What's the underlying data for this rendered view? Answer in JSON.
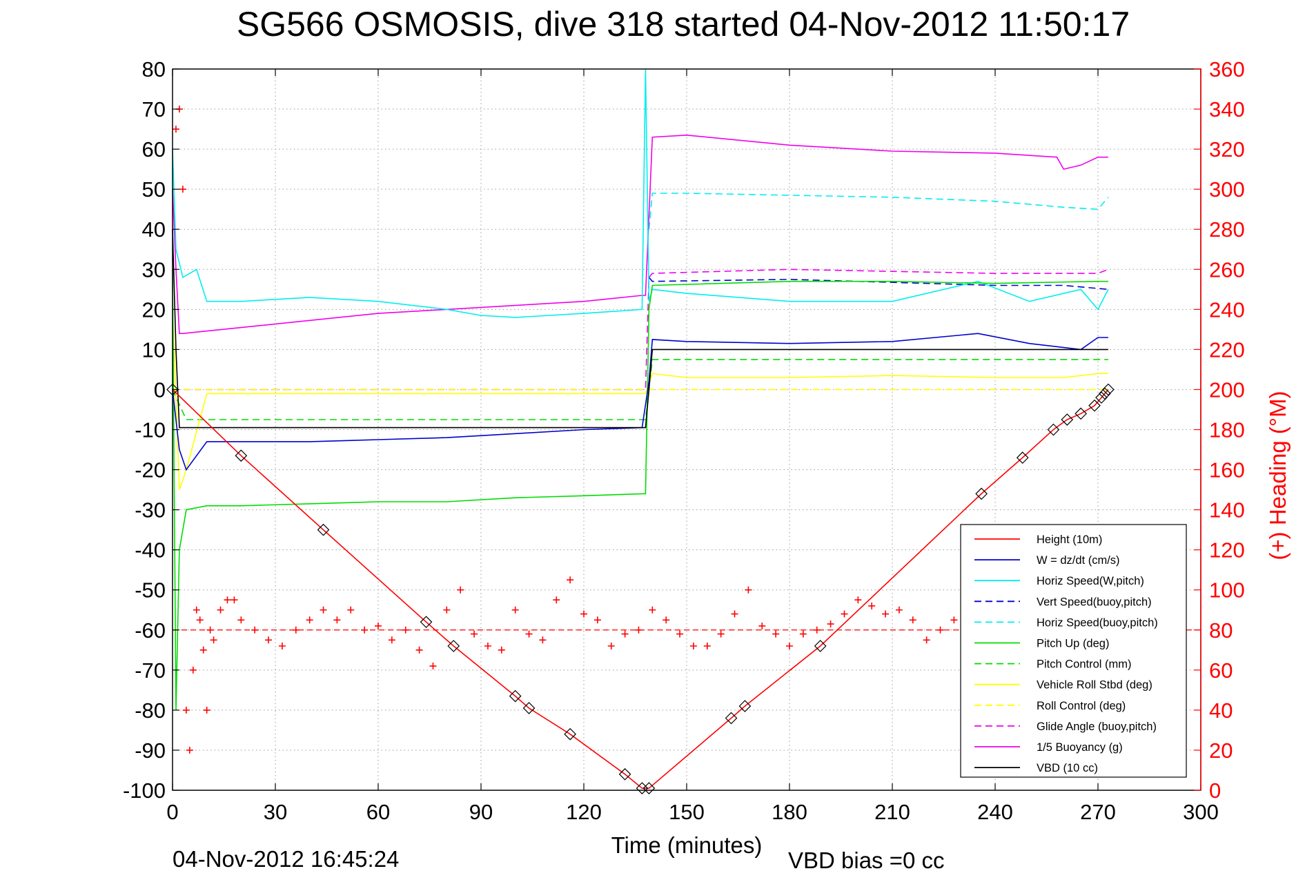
{
  "chart_data": {
    "type": "line",
    "title": "SG566 OSMOSIS, dive 318 started 04-Nov-2012 11:50:17",
    "xlabel": "Time (minutes)",
    "ylabel": "",
    "y2label": "(+) Heading (°M)",
    "footer_left": "04-Nov-2012 16:45:24",
    "footer_right": "VBD bias =0 cc",
    "xlim": [
      0,
      300
    ],
    "ylim": [
      -100,
      80
    ],
    "y2lim": [
      0,
      360
    ],
    "xticks": [
      0,
      30,
      60,
      90,
      120,
      150,
      180,
      210,
      240,
      270,
      300
    ],
    "yticks": [
      -100,
      -90,
      -80,
      -70,
      -60,
      -50,
      -40,
      -30,
      -20,
      -10,
      0,
      10,
      20,
      30,
      40,
      50,
      60,
      70,
      80
    ],
    "y2ticks": [
      0,
      20,
      40,
      60,
      80,
      100,
      120,
      140,
      160,
      180,
      200,
      220,
      240,
      260,
      280,
      300,
      320,
      340,
      360
    ],
    "grid": true,
    "legend_position": "bottom-right",
    "colors": {
      "red": "#ff0000",
      "blue": "#0000cc",
      "cyan": "#00eeee",
      "green": "#00dd00",
      "yellow": "#ffff00",
      "magenta": "#ee00ee",
      "black": "#000000"
    },
    "series": [
      {
        "name": "Height (10m)",
        "color": "#ff0000",
        "style": "solid",
        "axis": "left",
        "x": [
          0,
          20,
          44,
          74,
          82,
          100,
          104,
          116,
          132,
          137,
          139,
          163,
          167,
          189,
          236,
          248,
          257,
          261,
          265,
          269,
          271,
          272,
          273
        ],
        "y": [
          0,
          -16.5,
          -35,
          -58,
          -64,
          -76.5,
          -79.5,
          -86,
          -96,
          -99.5,
          -99.5,
          -82,
          -79,
          -64,
          -26,
          -17,
          -10,
          -7.5,
          -6,
          -4,
          -2,
          -1,
          0
        ]
      },
      {
        "name": "W = dz/dt (cm/s)",
        "color": "#0000cc",
        "style": "solid",
        "axis": "left",
        "x": [
          0,
          2,
          4,
          10,
          20,
          40,
          60,
          80,
          100,
          120,
          137,
          139,
          140,
          150,
          180,
          210,
          235,
          250,
          265,
          270,
          273
        ],
        "y": [
          0,
          -15,
          -20,
          -13,
          -13,
          -13,
          -12.5,
          -12,
          -11,
          -10,
          -9.5,
          2,
          12.5,
          12,
          11.5,
          12,
          14,
          11.5,
          10,
          13,
          13
        ]
      },
      {
        "name": "Horiz Speed(W,pitch)",
        "color": "#00eeee",
        "style": "solid",
        "axis": "left",
        "x": [
          0,
          1,
          3,
          7,
          10,
          20,
          40,
          60,
          80,
          90,
          100,
          120,
          137,
          138,
          139,
          140,
          150,
          180,
          210,
          235,
          250,
          265,
          270,
          273
        ],
        "y": [
          60,
          35,
          28,
          30,
          22,
          22,
          23,
          22,
          20,
          18.5,
          18,
          19,
          20,
          80,
          22,
          25,
          24,
          22,
          22,
          27,
          22,
          25,
          20,
          25
        ]
      },
      {
        "name": "Vert Speed(buoy,pitch)",
        "color": "#0000cc",
        "style": "dashed",
        "axis": "left",
        "x": [
          139,
          140,
          180,
          240,
          260,
          273
        ],
        "y": [
          28,
          27,
          27.5,
          26,
          26,
          25
        ]
      },
      {
        "name": "Horiz Speed(buoy,pitch)",
        "color": "#00eeee",
        "style": "dashed",
        "axis": "left",
        "x": [
          139,
          140,
          150,
          180,
          210,
          240,
          260,
          270,
          273
        ],
        "y": [
          40,
          49,
          49,
          48.5,
          48,
          47,
          45.5,
          45,
          48
        ]
      },
      {
        "name": "Pitch Up (deg)",
        "color": "#00dd00",
        "style": "solid",
        "axis": "left",
        "x": [
          0,
          1,
          2,
          4,
          10,
          20,
          40,
          60,
          80,
          100,
          120,
          137,
          138,
          139,
          140,
          180,
          210,
          240,
          270,
          273
        ],
        "y": [
          30,
          -80,
          -40,
          -30,
          -29,
          -29,
          -28.5,
          -28,
          -28,
          -27,
          -26.5,
          -26,
          -26,
          20,
          26,
          27,
          27,
          26.5,
          27,
          27
        ]
      },
      {
        "name": "Pitch Control (mm)",
        "color": "#00dd00",
        "style": "dashed",
        "axis": "left",
        "x": [
          0,
          4,
          137,
          138,
          139,
          140,
          273
        ],
        "y": [
          0,
          -7.5,
          -7.5,
          -7.5,
          0,
          7.5,
          7.5
        ]
      },
      {
        "name": "Vehicle Roll Stbd (deg)",
        "color": "#ffff00",
        "style": "solid",
        "axis": "left",
        "x": [
          0,
          2,
          4,
          10,
          20,
          40,
          60,
          80,
          100,
          120,
          137,
          138,
          140,
          150,
          180,
          210,
          240,
          260,
          270,
          273
        ],
        "y": [
          20,
          -25,
          -20,
          -1,
          -1,
          -1,
          -1,
          -1,
          -1,
          -1,
          -1,
          -1,
          4,
          3,
          3,
          3.5,
          3,
          3,
          4,
          4
        ]
      },
      {
        "name": "Roll Control (deg)",
        "color": "#ffff00",
        "style": "dashed",
        "axis": "left",
        "x": [
          0,
          273
        ],
        "y": [
          0,
          0
        ]
      },
      {
        "name": "Glide Angle (buoy,pitch)",
        "color": "#ee00ee",
        "style": "dashed",
        "axis": "left",
        "x": [
          0,
          138,
          139,
          140,
          180,
          210,
          240,
          270,
          273
        ],
        "y": [
          0,
          0,
          28,
          29,
          30,
          29.5,
          29,
          29,
          30
        ]
      },
      {
        "name": "1/5 Buoyancy (g)",
        "color": "#ee00ee",
        "style": "solid",
        "axis": "left",
        "x": [
          0,
          1,
          2,
          3,
          60,
          120,
          137,
          138,
          140,
          150,
          180,
          210,
          240,
          258,
          260,
          265,
          270,
          273
        ],
        "y": [
          50,
          30,
          14,
          14,
          19,
          22,
          23.5,
          23.5,
          63,
          63.5,
          61,
          59.5,
          59,
          58,
          55,
          56,
          58,
          58
        ]
      },
      {
        "name": "VBD (10 cc)",
        "color": "#000000",
        "style": "solid",
        "axis": "left",
        "x": [
          0,
          1,
          2,
          3,
          137,
          138,
          139,
          140,
          141,
          273
        ],
        "y": [
          40,
          10,
          -9.5,
          -9.5,
          -9.5,
          -9.5,
          0,
          10,
          10,
          10
        ]
      }
    ],
    "heading": {
      "name": "Heading",
      "axis": "right",
      "color": "#ff0000",
      "marker": "+",
      "x": [
        1,
        2,
        3,
        4,
        5,
        6,
        7,
        8,
        9,
        10,
        11,
        12,
        14,
        16,
        18,
        20,
        24,
        28,
        32,
        36,
        40,
        44,
        48,
        52,
        56,
        60,
        64,
        68,
        72,
        76,
        80,
        84,
        88,
        92,
        96,
        100,
        104,
        108,
        112,
        116,
        120,
        124,
        128,
        132,
        136,
        140,
        144,
        148,
        152,
        156,
        160,
        164,
        168,
        172,
        176,
        180,
        184,
        188,
        192,
        196,
        200,
        204,
        208,
        212,
        216,
        220,
        224,
        228,
        232
      ],
      "y": [
        330,
        340,
        300,
        40,
        20,
        60,
        90,
        85,
        70,
        40,
        80,
        75,
        90,
        95,
        95,
        85,
        80,
        75,
        72,
        80,
        85,
        90,
        85,
        90,
        80,
        82,
        75,
        80,
        70,
        62,
        90,
        100,
        78,
        72,
        70,
        90,
        78,
        75,
        95,
        105,
        88,
        85,
        72,
        78,
        80,
        90,
        85,
        78,
        72,
        72,
        78,
        88,
        100,
        82,
        78,
        72,
        78,
        80,
        83,
        88,
        95,
        92,
        88,
        90,
        85,
        75,
        80,
        85,
        82
      ],
      "mean": 80
    }
  }
}
